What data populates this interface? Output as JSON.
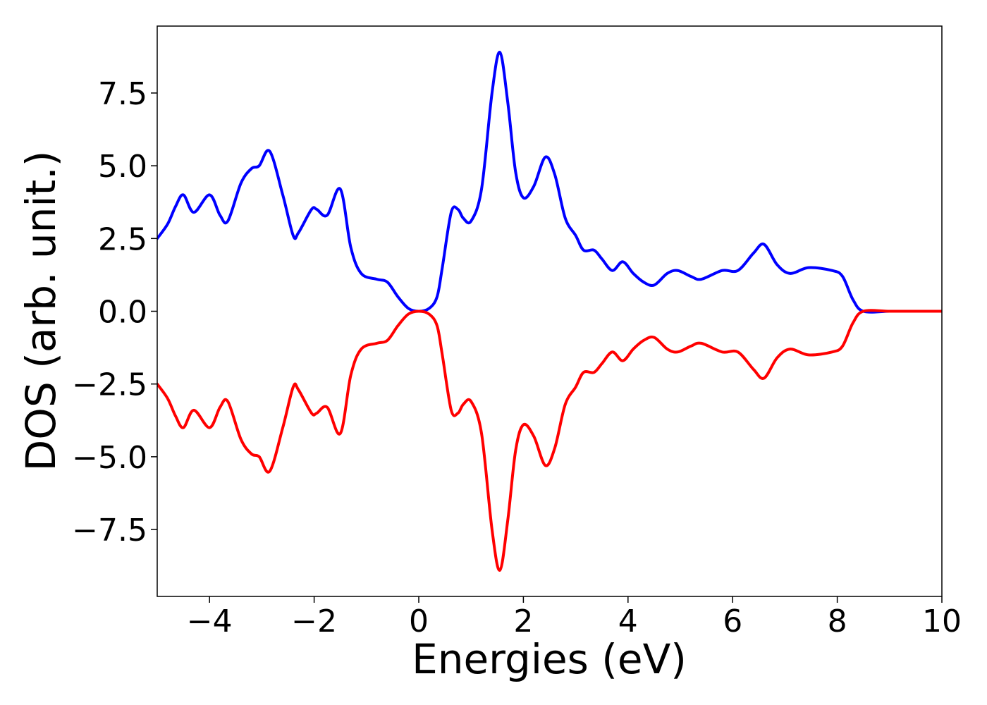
{
  "chart_data": {
    "type": "line",
    "xlabel": "Energies (eV)",
    "ylabel": "DOS (arb. unit.)",
    "xlim": [
      -5,
      10
    ],
    "ylim": [
      -9.8,
      9.8
    ],
    "x_ticks": [
      -4,
      -2,
      0,
      2,
      4,
      6,
      8,
      10
    ],
    "x_tick_labels": [
      "−4",
      "−2",
      "0",
      "2",
      "4",
      "6",
      "8",
      "10"
    ],
    "y_ticks": [
      7.5,
      5.0,
      2.5,
      0.0,
      -2.5,
      -5.0,
      -7.5
    ],
    "y_tick_labels": [
      "7.5",
      "5.0",
      "2.5",
      "0.0",
      "−2.5",
      "−5.0",
      "−7.5"
    ],
    "grid": false,
    "series": [
      {
        "color": "#0000ff",
        "x": [
          -5.0,
          -4.8,
          -4.65,
          -4.5,
          -4.3,
          -4.0,
          -3.8,
          -3.65,
          -3.4,
          -3.2,
          -3.05,
          -2.85,
          -2.6,
          -2.4,
          -2.3,
          -2.05,
          -1.95,
          -1.75,
          -1.5,
          -1.3,
          -1.1,
          -0.8,
          -0.6,
          -0.4,
          -0.2,
          0.0,
          0.2,
          0.35,
          0.45,
          0.62,
          0.75,
          0.85,
          1.0,
          1.2,
          1.4,
          1.55,
          1.7,
          1.85,
          2.0,
          2.2,
          2.42,
          2.6,
          2.8,
          3.0,
          3.15,
          3.35,
          3.5,
          3.7,
          3.9,
          4.1,
          4.3,
          4.5,
          4.75,
          4.95,
          5.2,
          5.4,
          5.8,
          6.1,
          6.4,
          6.6,
          6.85,
          7.1,
          7.45,
          7.9,
          8.1,
          8.3,
          8.5,
          9.0,
          9.5,
          10.0
        ],
        "y": [
          2.5,
          3.0,
          3.6,
          4.0,
          3.4,
          4.0,
          3.3,
          3.1,
          4.4,
          4.9,
          5.0,
          5.5,
          4.0,
          2.6,
          2.7,
          3.5,
          3.5,
          3.3,
          4.2,
          2.2,
          1.3,
          1.1,
          1.0,
          0.5,
          0.1,
          0.0,
          0.1,
          0.5,
          1.5,
          3.4,
          3.5,
          3.2,
          3.1,
          4.2,
          7.5,
          8.9,
          7.2,
          4.8,
          3.9,
          4.3,
          5.3,
          4.7,
          3.2,
          2.6,
          2.1,
          2.1,
          1.8,
          1.4,
          1.7,
          1.3,
          1.0,
          0.9,
          1.3,
          1.4,
          1.2,
          1.1,
          1.4,
          1.4,
          2.0,
          2.3,
          1.6,
          1.3,
          1.5,
          1.4,
          1.2,
          0.4,
          0.0,
          0.0,
          0.0,
          0.0
        ]
      },
      {
        "color": "#ff0000",
        "x": [
          -5.0,
          -4.8,
          -4.65,
          -4.5,
          -4.3,
          -4.0,
          -3.8,
          -3.65,
          -3.4,
          -3.2,
          -3.05,
          -2.85,
          -2.6,
          -2.4,
          -2.3,
          -2.05,
          -1.95,
          -1.75,
          -1.5,
          -1.3,
          -1.1,
          -0.8,
          -0.6,
          -0.4,
          -0.2,
          0.0,
          0.2,
          0.35,
          0.45,
          0.62,
          0.75,
          0.85,
          1.0,
          1.2,
          1.4,
          1.55,
          1.7,
          1.85,
          2.0,
          2.2,
          2.42,
          2.6,
          2.8,
          3.0,
          3.15,
          3.35,
          3.5,
          3.7,
          3.9,
          4.1,
          4.3,
          4.5,
          4.75,
          4.95,
          5.2,
          5.4,
          5.8,
          6.1,
          6.4,
          6.6,
          6.85,
          7.1,
          7.45,
          7.9,
          8.1,
          8.3,
          8.5,
          9.0,
          9.5,
          10.0
        ],
        "y": [
          -2.5,
          -3.0,
          -3.6,
          -4.0,
          -3.4,
          -4.0,
          -3.3,
          -3.1,
          -4.4,
          -4.9,
          -5.0,
          -5.5,
          -4.0,
          -2.6,
          -2.7,
          -3.5,
          -3.5,
          -3.3,
          -4.2,
          -2.2,
          -1.3,
          -1.1,
          -1.0,
          -0.5,
          -0.1,
          0.0,
          -0.1,
          -0.5,
          -1.5,
          -3.4,
          -3.5,
          -3.2,
          -3.1,
          -4.2,
          -7.5,
          -8.9,
          -7.2,
          -4.8,
          -3.9,
          -4.3,
          -5.3,
          -4.7,
          -3.2,
          -2.6,
          -2.1,
          -2.1,
          -1.8,
          -1.4,
          -1.7,
          -1.3,
          -1.0,
          -0.9,
          -1.3,
          -1.4,
          -1.2,
          -1.1,
          -1.4,
          -1.4,
          -2.0,
          -2.3,
          -1.6,
          -1.3,
          -1.5,
          -1.4,
          -1.2,
          -0.4,
          0.0,
          0.0,
          0.0,
          0.0
        ]
      }
    ]
  }
}
